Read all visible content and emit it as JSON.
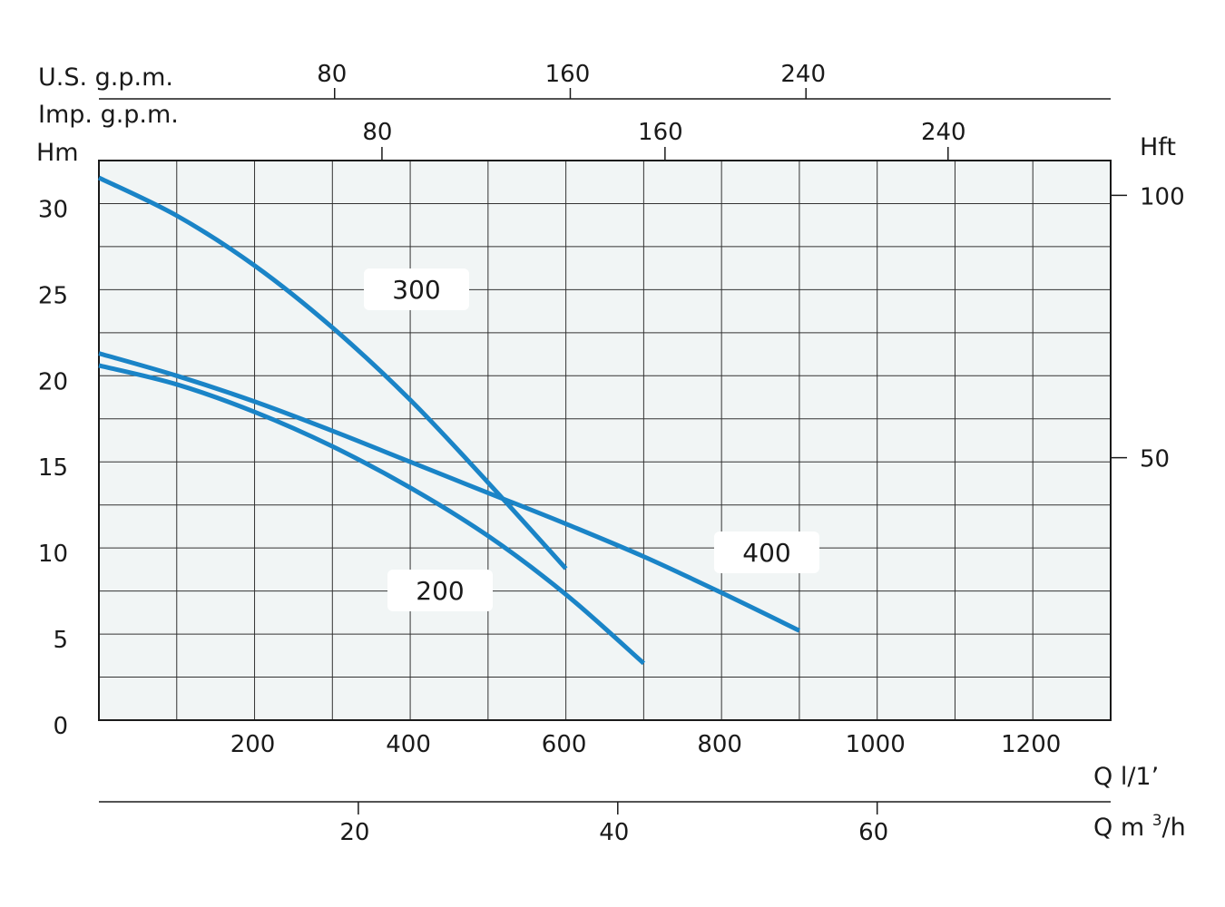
{
  "chart_data": {
    "type": "line",
    "title": "",
    "xlabel": "Q l/1’",
    "ylabel": "Hm",
    "xlim": [
      0,
      1300
    ],
    "ylim": [
      0,
      32.5
    ],
    "grid": true,
    "x_ticks": [
      200,
      400,
      600,
      800,
      1000,
      1200
    ],
    "y_ticks": [
      0,
      5,
      10,
      15,
      20,
      25,
      30
    ],
    "right_axis": {
      "label": "Hft",
      "ticks": [
        50,
        100
      ]
    },
    "top_axes": [
      {
        "label": "U.S. g.p.m.",
        "ticks": [
          80,
          160,
          240
        ]
      },
      {
        "label": "Imp. g.p.m.",
        "ticks": [
          80,
          160,
          240
        ]
      }
    ],
    "bottom_axis_2": {
      "label_main": "Q m",
      "label_sup": "3",
      "label_end": "/h",
      "ticks": [
        20,
        40,
        60
      ]
    },
    "series": [
      {
        "name": "300",
        "color": "#1a84c7",
        "x": [
          0,
          100,
          200,
          300,
          400,
          500,
          600
        ],
        "y": [
          31.5,
          29.3,
          26.4,
          22.8,
          18.6,
          13.8,
          8.8
        ]
      },
      {
        "name": "400",
        "color": "#1a84c7",
        "x": [
          0,
          100,
          200,
          300,
          400,
          500,
          600,
          700,
          800,
          900
        ],
        "y": [
          21.3,
          20.0,
          18.5,
          16.8,
          15.0,
          13.2,
          11.4,
          9.5,
          7.4,
          5.2
        ]
      },
      {
        "name": "200",
        "color": "#1a84c7",
        "x": [
          0,
          100,
          200,
          300,
          400,
          500,
          600,
          700
        ],
        "y": [
          20.6,
          19.5,
          17.9,
          15.9,
          13.5,
          10.7,
          7.3,
          3.3
        ]
      }
    ]
  }
}
